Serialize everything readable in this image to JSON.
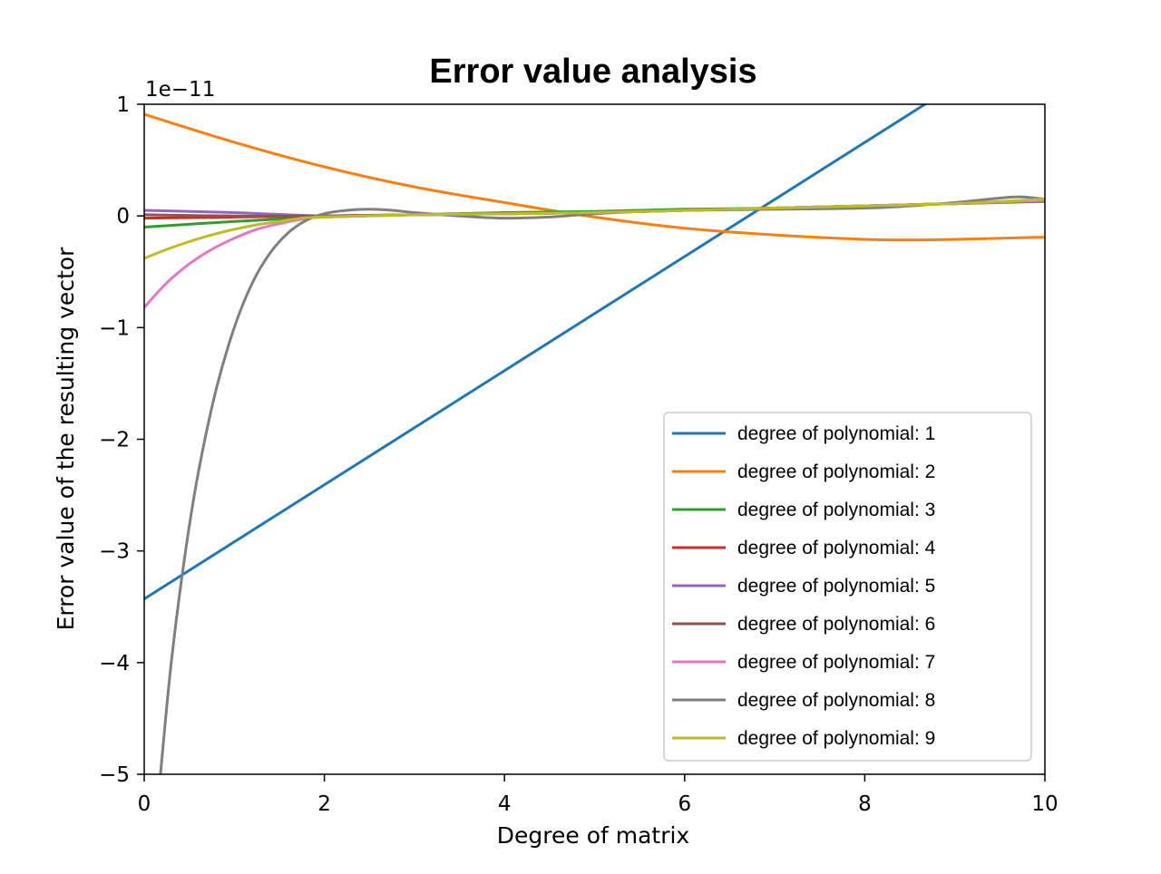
{
  "chart_data": {
    "type": "line",
    "title": "Error value analysis",
    "xlabel": "Degree of matrix",
    "ylabel": "Error value of the resulting vector",
    "y_scale_factor_label": "1e−11",
    "xlim": [
      0,
      10
    ],
    "ylim": [
      -5,
      1
    ],
    "y_unit_multiplier": "1e-11",
    "x_ticks": [
      0,
      2,
      4,
      6,
      8,
      10
    ],
    "x_tick_labels": [
      "0",
      "2",
      "4",
      "6",
      "8",
      "10"
    ],
    "y_ticks": [
      1,
      0,
      -1,
      -2,
      -3,
      -4,
      -5
    ],
    "y_tick_labels": [
      "1",
      "0",
      "−1",
      "−2",
      "−3",
      "−4",
      "−5"
    ],
    "grid": false,
    "legend_position": "lower-right",
    "series": [
      {
        "name": "degree of polynomial: 1",
        "color": "#1f77b4",
        "x": [
          0,
          10
        ],
        "y": [
          -3.43,
          1.68
        ]
      },
      {
        "name": "degree of polynomial: 2",
        "color": "#ff7f0e",
        "x": [
          0,
          1,
          2,
          3,
          4,
          5,
          6,
          7,
          8,
          8.6,
          9,
          10
        ],
        "y": [
          0.91,
          0.66,
          0.44,
          0.26,
          0.12,
          -0.01,
          -0.11,
          -0.17,
          -0.21,
          -0.215,
          -0.21,
          -0.19
        ]
      },
      {
        "name": "degree of polynomial: 3",
        "color": "#2ca02c",
        "x": [
          0,
          1,
          2,
          3,
          4,
          5,
          6,
          7,
          8,
          9,
          10
        ],
        "y": [
          -0.1,
          -0.05,
          -0.01,
          0.01,
          0.03,
          0.04,
          0.06,
          0.07,
          0.09,
          0.11,
          0.13
        ]
      },
      {
        "name": "degree of polynomial: 4",
        "color": "#d62728",
        "x": [
          0,
          1,
          2,
          3,
          4,
          5,
          6,
          7,
          8,
          9,
          10
        ],
        "y": [
          -0.02,
          -0.01,
          0,
          0.01,
          0.02,
          0.03,
          0.05,
          0.07,
          0.09,
          0.11,
          0.14
        ]
      },
      {
        "name": "degree of polynomial: 5",
        "color": "#9467bd",
        "x": [
          0,
          1,
          2,
          3,
          4,
          5,
          6,
          7,
          8,
          9,
          10
        ],
        "y": [
          0.05,
          0.03,
          0,
          0.01,
          0.02,
          0.03,
          0.05,
          0.07,
          0.09,
          0.11,
          0.14
        ]
      },
      {
        "name": "degree of polynomial: 6",
        "color": "#8c564b",
        "x": [
          0,
          1,
          2,
          3,
          4,
          5,
          6,
          7,
          8,
          9,
          10
        ],
        "y": [
          0.01,
          0,
          0,
          0.01,
          0.02,
          0.03,
          0.05,
          0.07,
          0.09,
          0.11,
          0.14
        ]
      },
      {
        "name": "degree of polynomial: 7",
        "color": "#e377c2",
        "x": [
          0,
          0.25,
          0.5,
          0.75,
          1,
          1.25,
          1.5,
          1.75,
          2,
          3,
          4,
          5,
          6,
          7,
          8,
          9,
          10
        ],
        "y": [
          -0.82,
          -0.6,
          -0.43,
          -0.3,
          -0.2,
          -0.12,
          -0.07,
          -0.03,
          -0.01,
          0.01,
          0.02,
          0.03,
          0.05,
          0.07,
          0.09,
          0.11,
          0.14
        ]
      },
      {
        "name": "degree of polynomial: 8",
        "color": "#7f7f7f",
        "x": [
          0.18,
          0.3,
          0.45,
          0.6,
          0.8,
          1.0,
          1.2,
          1.4,
          1.6,
          1.8,
          2.0,
          2.25,
          2.5,
          2.75,
          3.0,
          3.5,
          4.0,
          4.5,
          5.0,
          5.5,
          6.0,
          7.0,
          8.0,
          8.5,
          9.0,
          9.5,
          9.75,
          10.0
        ],
        "y": [
          -5.0,
          -4.0,
          -3.05,
          -2.3,
          -1.55,
          -1.0,
          -0.6,
          -0.33,
          -0.15,
          -0.04,
          0.02,
          0.05,
          0.06,
          0.05,
          0.03,
          0.0,
          -0.02,
          -0.01,
          0.02,
          0.04,
          0.05,
          0.06,
          0.07,
          0.09,
          0.12,
          0.16,
          0.17,
          0.15
        ]
      },
      {
        "name": "degree of polynomial: 9",
        "color": "#bcbd22",
        "x": [
          0,
          0.25,
          0.5,
          0.75,
          1,
          1.25,
          1.5,
          1.75,
          2,
          3,
          4,
          5,
          6,
          7,
          8,
          9,
          10
        ],
        "y": [
          -0.38,
          -0.3,
          -0.23,
          -0.17,
          -0.12,
          -0.08,
          -0.05,
          -0.02,
          -0.01,
          0.01,
          0.02,
          0.03,
          0.05,
          0.07,
          0.09,
          0.11,
          0.15
        ]
      }
    ]
  }
}
